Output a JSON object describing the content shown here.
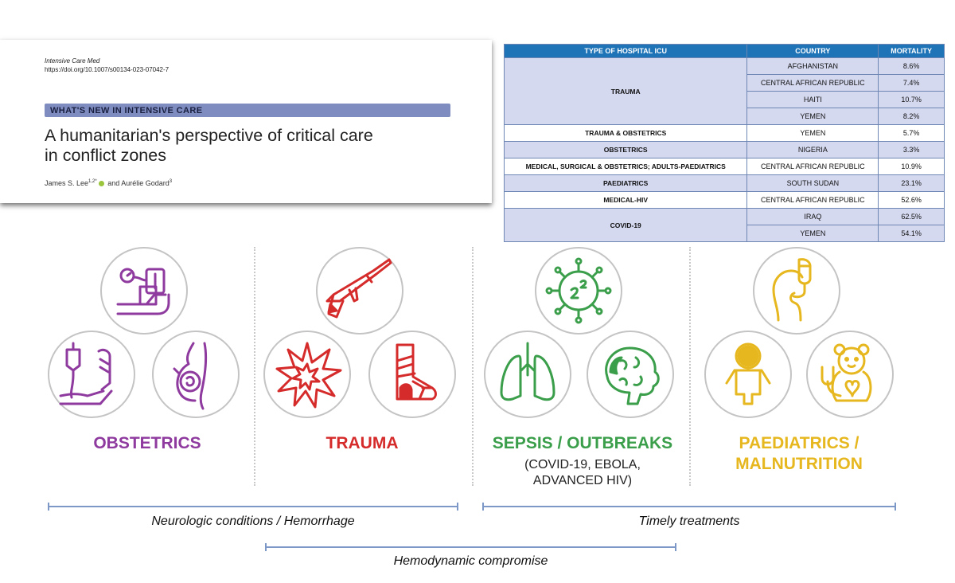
{
  "paper": {
    "journal": "Intensive Care Med",
    "doi": "https://doi.org/10.1007/s00134-023-07042-7",
    "section": "WHAT'S NEW IN INTENSIVE CARE",
    "title_line1": "A humanitarian's perspective of critical care",
    "title_line2": "in conflict zones",
    "author1": "James S. Lee",
    "author1_sup": "1,2*",
    "and": "and Aurélie Godard",
    "author2_sup": "3"
  },
  "table": {
    "headers": [
      "TYPE OF HOSPITAL ICU",
      "COUNTRY",
      "MORTALITY"
    ],
    "groups": [
      {
        "type": "TRAUMA",
        "rows": [
          [
            "AFGHANISTAN",
            "8.6%"
          ],
          [
            "CENTRAL AFRICAN REPUBLIC",
            "7.4%"
          ],
          [
            "HAITI",
            "10.7%"
          ],
          [
            "YEMEN",
            "8.2%"
          ]
        ]
      },
      {
        "type": "TRAUMA & OBSTETRICS",
        "rows": [
          [
            "YEMEN",
            "5.7%"
          ]
        ]
      },
      {
        "type": "OBSTETRICS",
        "rows": [
          [
            "NIGERIA",
            "3.3%"
          ]
        ]
      },
      {
        "type": "MEDICAL, SURGICAL & OBSTETRICS; ADULTS-PAEDIATRICS",
        "rows": [
          [
            "CENTRAL AFRICAN REPUBLIC",
            "10.9%"
          ]
        ]
      },
      {
        "type": "PAEDIATRICS",
        "rows": [
          [
            "SOUTH SUDAN",
            "23.1%"
          ]
        ]
      },
      {
        "type": "MEDICAL-HIV",
        "rows": [
          [
            "CENTRAL AFRICAN REPUBLIC",
            "52.6%"
          ]
        ]
      },
      {
        "type": "COVID-19",
        "rows": [
          [
            "IRAQ",
            "62.5%"
          ],
          [
            "YEMEN",
            "54.1%"
          ]
        ]
      }
    ]
  },
  "categories": {
    "obstetrics": {
      "label": "OBSTETRICS",
      "color": "#8e3a9e"
    },
    "trauma": {
      "label": "TRAUMA",
      "color": "#d52b2b"
    },
    "sepsis": {
      "label": "SEPSIS / OUTBREAKS",
      "sub1": "(COVID-19, EBOLA,",
      "sub2": "ADVANCED HIV)",
      "color": "#3a9e4a"
    },
    "paediatrics": {
      "label1": "PAEDIATRICS /",
      "label2": "MALNUTRITION",
      "color": "#e6b71e"
    }
  },
  "icons": [
    "blood-pressure-cuff-icon",
    "iv-drip-arm-icon",
    "pregnancy-icon",
    "rifle-icon",
    "explosion-icon",
    "injured-foot-icon",
    "virus-icon",
    "lungs-icon",
    "brain-icon",
    "feeding-tube-child-icon",
    "baby-icon",
    "teddy-bear-stethoscope-icon"
  ],
  "brackets": {
    "left": "Neurologic conditions / Hemorrhage",
    "right": "Timely treatments",
    "middle": "Hemodynamic compromise"
  }
}
